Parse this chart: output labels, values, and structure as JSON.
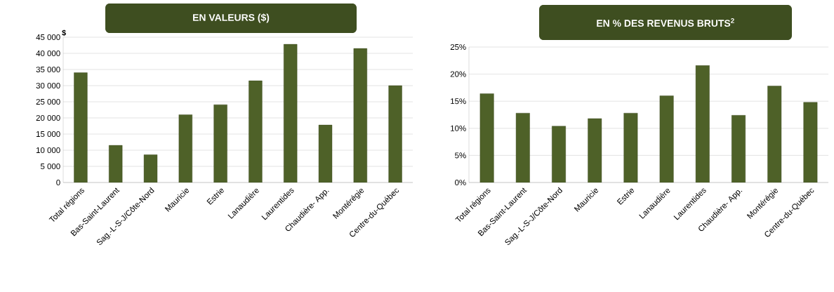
{
  "chart_data": [
    {
      "type": "bar",
      "title": "EN  VALEURS ($)",
      "ylabel": "$",
      "categories": [
        "Total régions",
        "Bas-Saint-Laurent",
        "Sag.-L-S-J/Côte-Nord",
        "Mauricie",
        "Estrie",
        "Lanaudière",
        "Laurentides",
        "Chaudière- App.",
        "Montérégie",
        "Centre-du-Québec"
      ],
      "values": [
        34000,
        11500,
        8600,
        21000,
        24100,
        31500,
        42800,
        17800,
        41500,
        30000
      ],
      "color": "#4e6128",
      "ylim": [
        0,
        45000
      ],
      "yticks": [
        0,
        {
          "value": 5000,
          "label": "5 000"
        },
        {
          "value": 10000,
          "label": "10 000"
        },
        {
          "value": 15000,
          "label": "15 000"
        },
        {
          "value": 20000,
          "label": "20 000"
        },
        {
          "value": 25000,
          "label": "25 000"
        },
        {
          "value": 30000,
          "label": "30 000"
        },
        {
          "value": 35000,
          "label": "35 000"
        },
        {
          "value": 40000,
          "label": "40 000"
        },
        {
          "value": 45000,
          "label": "45 000"
        }
      ],
      "grid": "y"
    },
    {
      "type": "bar",
      "title": "EN % DES REVENUS BRUTS$^{2}$",
      "categories": [
        "Total régions",
        "Bas-Saint-Laurent",
        "Sag.-L-S-J/Côte-Nord",
        "Mauricie",
        "Estrie",
        "Lanaudière",
        "Laurentides",
        "Chaudière- App.",
        "Montérégie",
        "Centre-du-Québec"
      ],
      "values": [
        16.4,
        12.8,
        10.4,
        11.8,
        12.8,
        16.0,
        21.6,
        12.4,
        17.8,
        14.8
      ],
      "color": "#4e6128",
      "ylim": [
        0,
        25
      ],
      "yticks": [
        {
          "value": 0,
          "label": "0%"
        },
        {
          "value": 5,
          "label": "5%"
        },
        {
          "value": 10,
          "label": "10%"
        },
        {
          "value": 15,
          "label": "15%"
        },
        {
          "value": 20,
          "label": "20%"
        },
        {
          "value": 25,
          "label": "25%"
        }
      ],
      "grid": "y"
    }
  ]
}
